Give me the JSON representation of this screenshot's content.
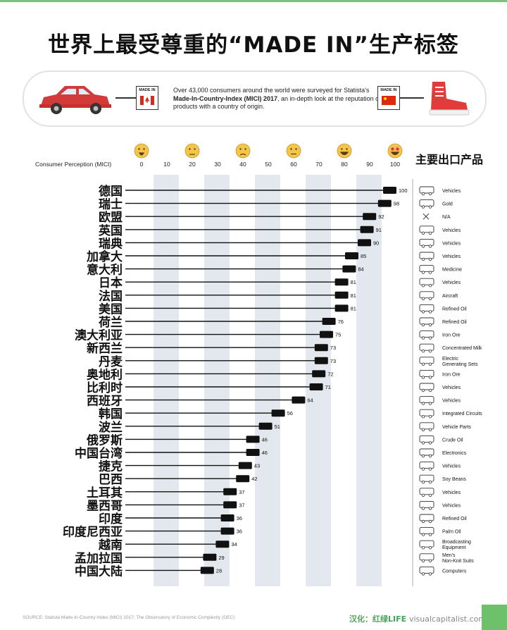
{
  "title": "世界上最受尊重的“MADE IN”生产标签",
  "intro": {
    "tag_label": "MADE IN",
    "text_1": "Over 43,000 consumers around the world were surveyed for Statista's ",
    "text_bold": "Made-In-Country-Index (MICI) 2017",
    "text_2": ", an in-depth look at the reputation of products with a country of origin."
  },
  "chart_data": {
    "type": "bar",
    "xlabel": "Consumer Perception (MICI)",
    "export_header": "主要出口产品",
    "xlim": [
      0,
      100
    ],
    "ticks": [
      0,
      10,
      20,
      30,
      40,
      50,
      60,
      70,
      80,
      90,
      100
    ],
    "emoji_scale": [
      "screaming-face-icon",
      "tired-face-icon",
      "unamused-face-icon",
      "neutral-face-icon",
      "grinning-face-icon",
      "heart-eyes-face-icon"
    ],
    "emoji_ticks": [
      0,
      20,
      40,
      60,
      80,
      100
    ],
    "bar_color": "#111111",
    "band_color": "#e3e8ee",
    "categories": [
      "德国",
      "瑞士",
      "欧盟",
      "英国",
      "瑞典",
      "加拿大",
      "意大利",
      "日本",
      "法国",
      "美国",
      "荷兰",
      "澳大利亚",
      "新西兰",
      "丹麦",
      "奥地利",
      "比利时",
      "西班牙",
      "韩国",
      "波兰",
      "俄罗斯",
      "中国台湾",
      "捷克",
      "巴西",
      "土耳其",
      "墨西哥",
      "印度",
      "印度尼西亚",
      "越南",
      "孟加拉国",
      "中国大陆"
    ],
    "values": [
      100,
      98,
      92,
      91,
      90,
      85,
      84,
      81,
      81,
      81,
      76,
      75,
      73,
      73,
      72,
      71,
      64,
      56,
      51,
      46,
      46,
      43,
      42,
      37,
      37,
      36,
      36,
      34,
      29,
      28
    ],
    "exports": [
      "Vehicles",
      "Gold",
      "N/A",
      "Vehicles",
      "Vehicles",
      "Vehicles",
      "Medicine",
      "Vehicles",
      "Aircraft",
      "Refined Oil",
      "Refined Oil",
      "Iron Ore",
      "Concentrated Milk",
      "Electric\nGenerating Sets",
      "Iron Ore",
      "Vehicles",
      "Vehicles",
      "Integrated Circuits",
      "Vehicle Parts",
      "Crude Oil",
      "Electronics",
      "Vehicles",
      "Soy Beans",
      "Vehicles",
      "Vehicles",
      "Refined Oil",
      "Palm Oil",
      "Broadcasting\nEquipment",
      "Men's\nNon-Knit Suits",
      "Computers"
    ],
    "export_icons": [
      "car-icon",
      "gold-bars-icon",
      "cross-icon",
      "car-icon",
      "car-icon",
      "car-icon",
      "medicine-icon",
      "car-icon",
      "airplane-icon",
      "oil-tanker-icon",
      "oil-tanker-icon",
      "ore-cart-icon",
      "milk-icon",
      "generator-icon",
      "ore-cart-icon",
      "car-icon",
      "car-icon",
      "chip-icon",
      "gear-icon",
      "oil-pump-icon",
      "electronics-icon",
      "car-icon",
      "soybean-icon",
      "car-icon",
      "car-icon",
      "oil-tanker-icon",
      "palm-oil-icon",
      "broadcast-icon",
      "suit-icon",
      "computer-icon"
    ]
  },
  "footer": {
    "source": "SOURCE: Statista Made-In-Country-Index (MICI) 2017; The Observatory of Economic Complexity (OEC)",
    "translation": "汉化：红绿LIFE",
    "site": "visualcapitalist.com"
  }
}
